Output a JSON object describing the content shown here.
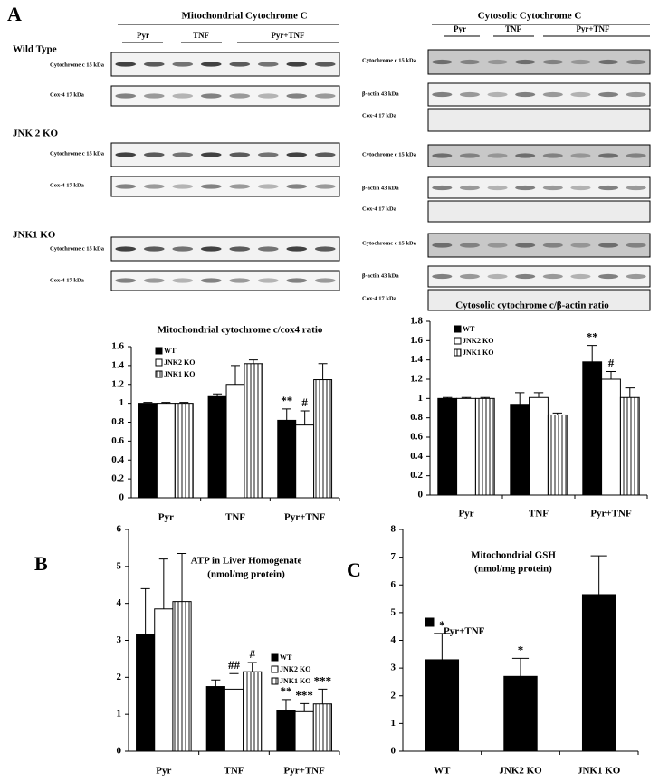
{
  "panel_labels": [
    "A",
    "B",
    "C"
  ],
  "blots": [
    {
      "title": "Mitochondrial  Cytochrome C",
      "groups": [
        "Pyr",
        "TNF",
        "Pyr+TNF"
      ],
      "sections": [
        {
          "name": "Wild Type",
          "rows": [
            "Cytochrome c  15 kDa",
            "Cox-4  17 kDa"
          ]
        },
        {
          "name": "JNK 2 KO",
          "rows": [
            "Cytochrome c  15 kDa",
            "Cox-4  17 kDa"
          ]
        },
        {
          "name": "JNK1 KO",
          "rows": [
            "Cytochrome c  15 kDa",
            "Cox-4  17 kDa"
          ]
        }
      ]
    },
    {
      "title": "Cytosolic  Cytochrome C",
      "groups": [
        "Pyr",
        "TNF",
        "Pyr+TNF"
      ],
      "sections": [
        {
          "rows": [
            "Cytochrome c  15 kDa",
            "β-actin  43 kDa",
            "Cox-4  17 kDa"
          ]
        },
        {
          "rows": [
            "Cytochrome c  15 kDa",
            "β-actin  43 kDa",
            "Cox-4  17 kDa"
          ]
        },
        {
          "rows": [
            "Cytochrome c  15 kDa",
            "β-actin  43 kDa",
            "Cox-4  17 kDa"
          ]
        }
      ]
    }
  ],
  "chart_data": [
    {
      "type": "bar",
      "title": "Mitochondrial cytochrome c/cox4 ratio",
      "categories": [
        "Pyr",
        "TNF",
        "Pyr+TNF"
      ],
      "series": [
        {
          "name": "WT",
          "color": "#000000",
          "values": [
            1,
            1.08,
            0.82
          ],
          "errors": [
            0.01,
            0.02,
            0.12
          ],
          "annotations": [
            null,
            null,
            "**"
          ]
        },
        {
          "name": "JNK2 KO",
          "color": "#ffffff",
          "values": [
            1,
            1.2,
            0.77
          ],
          "errors": [
            0.01,
            0.2,
            0.15
          ],
          "annotations": [
            null,
            null,
            "#"
          ]
        },
        {
          "name": "JNK1 KO",
          "color": "#a0a0a0",
          "hatch": "vertical",
          "values": [
            1,
            1.42,
            1.25
          ],
          "errors": [
            0.01,
            0.04,
            0.17
          ],
          "annotations": [
            null,
            null,
            null
          ]
        }
      ],
      "ylim": [
        0,
        1.6
      ],
      "yticks": [
        0,
        0.2,
        0.4,
        0.6,
        0.8,
        1,
        1.2,
        1.4,
        1.6
      ],
      "grid": false,
      "legend": "upper left"
    },
    {
      "type": "bar",
      "title": "Cytosolic cytochrome c/β-actin ratio",
      "categories": [
        "Pyr",
        "TNF",
        "Pyr+TNF"
      ],
      "series": [
        {
          "name": "WT",
          "color": "#000000",
          "values": [
            1,
            0.94,
            1.38
          ],
          "errors": [
            0.01,
            0.12,
            0.17
          ],
          "annotations": [
            null,
            null,
            "**"
          ]
        },
        {
          "name": "JNK2 KO",
          "color": "#ffffff",
          "values": [
            1,
            1.01,
            1.2
          ],
          "errors": [
            0.01,
            0.05,
            0.08
          ],
          "annotations": [
            null,
            null,
            "#"
          ]
        },
        {
          "name": "JNK1 KO",
          "color": "#a0a0a0",
          "hatch": "vertical",
          "values": [
            1,
            0.83,
            1.01
          ],
          "errors": [
            0.01,
            0.02,
            0.1
          ],
          "annotations": [
            null,
            null,
            null
          ]
        }
      ],
      "ylim": [
        0,
        1.8
      ],
      "yticks": [
        0,
        0.2,
        0.4,
        0.6,
        0.8,
        1,
        1.2,
        1.4,
        1.6,
        1.8
      ],
      "grid": false,
      "legend": "upper left"
    },
    {
      "type": "bar",
      "title": "ATP in Liver Homogenate",
      "subtitle": "(nmol/mg protein)",
      "categories": [
        "Pyr",
        "TNF",
        "Pyr+TNF"
      ],
      "series": [
        {
          "name": "WT",
          "color": "#000000",
          "values": [
            3.15,
            1.75,
            1.1
          ],
          "errors": [
            1.25,
            0.18,
            0.3
          ],
          "annotations": [
            null,
            null,
            "**"
          ]
        },
        {
          "name": "JNK2 KO",
          "color": "#ffffff",
          "values": [
            3.85,
            1.68,
            1.07
          ],
          "errors": [
            1.35,
            0.42,
            0.22
          ],
          "annotations": [
            null,
            "##",
            "***"
          ]
        },
        {
          "name": "JNK1 KO",
          "color": "#a0a0a0",
          "hatch": "vertical",
          "values": [
            4.05,
            2.15,
            1.28
          ],
          "errors": [
            1.3,
            0.25,
            0.4
          ],
          "annotations": [
            null,
            "#",
            "***"
          ]
        }
      ],
      "ylim": [
        0,
        6
      ],
      "yticks": [
        0,
        1,
        2,
        3,
        4,
        5,
        6
      ],
      "grid": false,
      "legend": "right"
    },
    {
      "type": "bar",
      "title": "Mitochondrial GSH",
      "subtitle": "(nmol/mg protein)",
      "categories": [
        "WT",
        "JNK2 KO",
        "JNK1 KO"
      ],
      "series": [
        {
          "name": "Pyr+TNF",
          "color": "#000000",
          "values": [
            3.3,
            2.7,
            5.65
          ],
          "errors": [
            0.95,
            0.65,
            1.4
          ],
          "annotations": [
            "*",
            "*",
            null
          ]
        }
      ],
      "ylim": [
        0,
        8
      ],
      "yticks": [
        0,
        1,
        2,
        3,
        4,
        5,
        6,
        7,
        8
      ],
      "grid": false,
      "legend": "upper left"
    }
  ]
}
